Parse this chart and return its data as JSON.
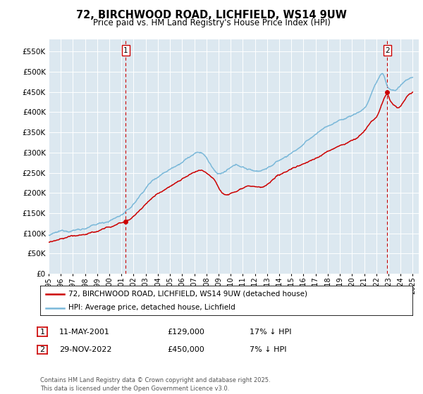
{
  "title": "72, BIRCHWOOD ROAD, LICHFIELD, WS14 9UW",
  "subtitle": "Price paid vs. HM Land Registry's House Price Index (HPI)",
  "background_color": "#dce8f0",
  "plot_bg_color": "#dce8f0",
  "hpi_color": "#7ab8d9",
  "price_color": "#cc0000",
  "x_start_year": 1995,
  "x_end_year": 2025,
  "y_min": 0,
  "y_max": 580000,
  "y_ticks": [
    0,
    50000,
    100000,
    150000,
    200000,
    250000,
    300000,
    350000,
    400000,
    450000,
    500000,
    550000
  ],
  "y_tick_labels": [
    "£0",
    "£50K",
    "£100K",
    "£150K",
    "£200K",
    "£250K",
    "£300K",
    "£350K",
    "£400K",
    "£450K",
    "£500K",
    "£550K"
  ],
  "sale1_year": 2001.36,
  "sale1_price": 129000,
  "sale1_label": "1",
  "sale2_year": 2022.91,
  "sale2_price": 450000,
  "sale2_label": "2",
  "legend_line1": "72, BIRCHWOOD ROAD, LICHFIELD, WS14 9UW (detached house)",
  "legend_line2": "HPI: Average price, detached house, Lichfield",
  "annotation1_date": "11-MAY-2001",
  "annotation1_price": "£129,000",
  "annotation1_hpi": "17% ↓ HPI",
  "annotation2_date": "29-NOV-2022",
  "annotation2_price": "£450,000",
  "annotation2_hpi": "7% ↓ HPI",
  "footer": "Contains HM Land Registry data © Crown copyright and database right 2025.\nThis data is licensed under the Open Government Licence v3.0."
}
